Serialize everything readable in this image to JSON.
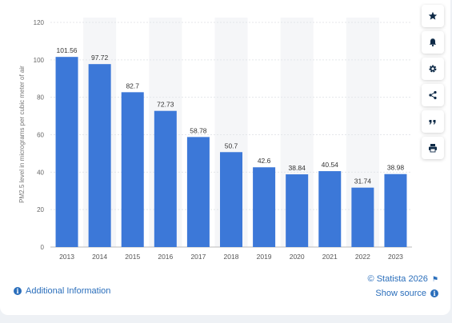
{
  "chart_data": {
    "type": "bar",
    "title": "",
    "xlabel": "",
    "ylabel": "PM2.5 level in micrograms per cubic meter of air",
    "categories": [
      "2013",
      "2014",
      "2015",
      "2016",
      "2017",
      "2018",
      "2019",
      "2020",
      "2021",
      "2022",
      "2023"
    ],
    "values": [
      101.56,
      97.72,
      82.7,
      72.73,
      58.78,
      50.7,
      42.6,
      38.84,
      40.54,
      31.74,
      38.98
    ],
    "value_labels": [
      "101.56",
      "97.72",
      "82.7",
      "72.73",
      "58.78",
      "50.7",
      "42.6",
      "38.84",
      "40.54",
      "31.74",
      "38.98"
    ],
    "ylim": [
      0,
      120
    ],
    "yticks": [
      "0",
      "20",
      "40",
      "60",
      "80",
      "100",
      "120"
    ],
    "grid": true,
    "legend": "none",
    "bar_color": "#3c78d8",
    "band_color": "#f5f6f8"
  },
  "sidebar": {
    "buttons": [
      {
        "name": "favorite-button",
        "icon": "star-icon"
      },
      {
        "name": "alert-button",
        "icon": "bell-icon"
      },
      {
        "name": "settings-button",
        "icon": "gear-icon"
      },
      {
        "name": "share-button",
        "icon": "share-icon"
      },
      {
        "name": "cite-button",
        "icon": "quote-icon"
      },
      {
        "name": "print-button",
        "icon": "print-icon"
      }
    ]
  },
  "footer": {
    "additional_info": "Additional Information",
    "copyright": "© Statista 2026",
    "show_source": "Show source"
  }
}
